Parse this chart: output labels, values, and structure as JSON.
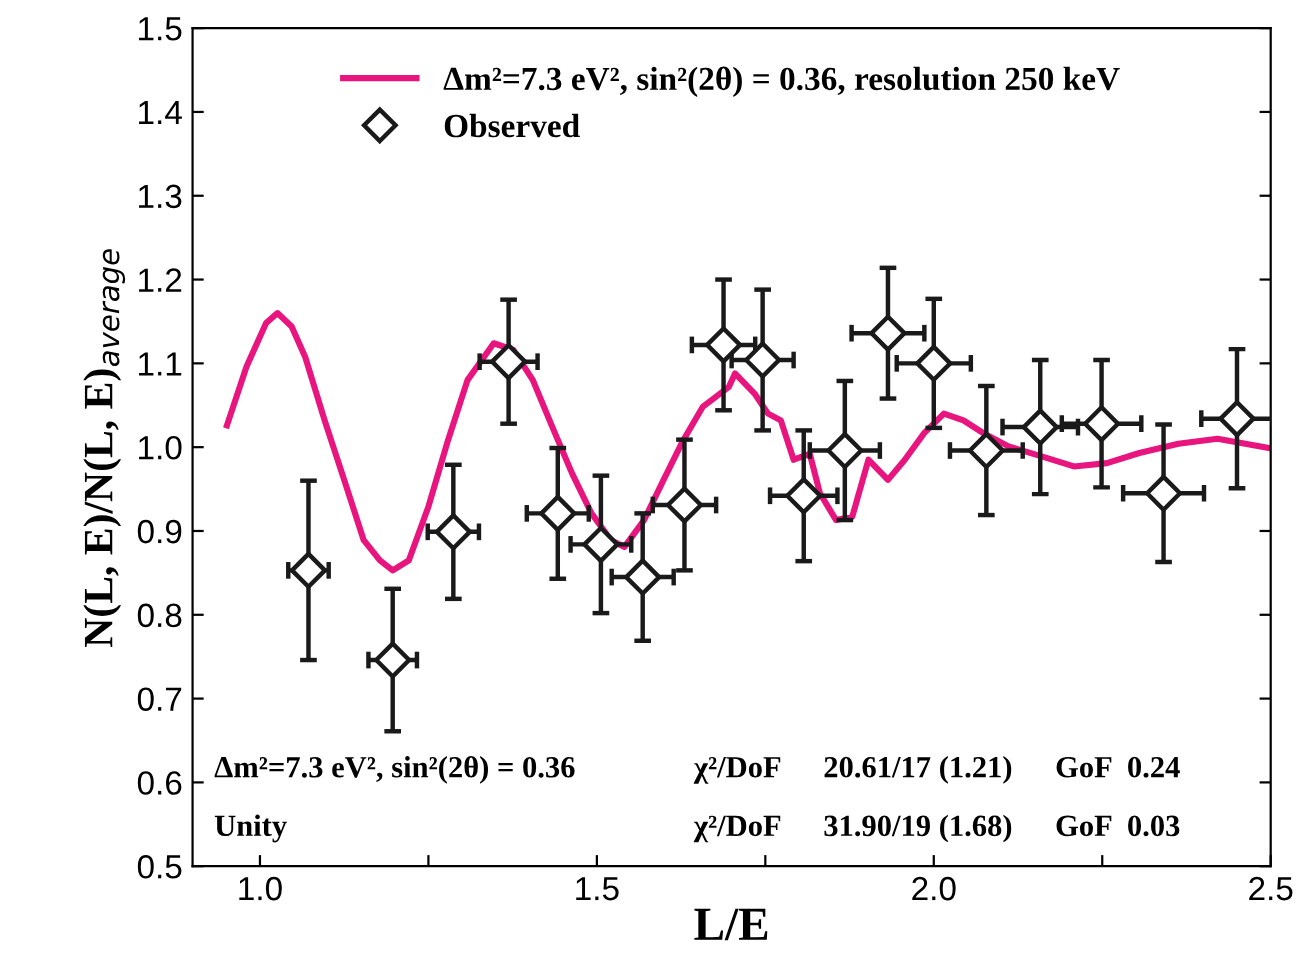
{
  "chart_data": {
    "type": "line",
    "xlabel": "L/E",
    "ylabel": "N(L, E)/N(L, E)$_{average}$",
    "xlim": [
      0.9,
      2.5
    ],
    "xticks": [
      {
        "value": 1.0,
        "label": "1.0"
      },
      {
        "value": 1.25,
        "label": null
      },
      {
        "value": 1.5,
        "label": "1.5"
      },
      {
        "value": 1.75,
        "label": null
      },
      {
        "value": 2.0,
        "label": "2.0"
      },
      {
        "value": 2.25,
        "label": null
      },
      {
        "value": 2.5,
        "label": "2.5"
      }
    ],
    "ylim": [
      0.5,
      1.5
    ],
    "yticks": [
      {
        "value": 0.5,
        "label": "0.5"
      },
      {
        "value": 0.6,
        "label": "0.6"
      },
      {
        "value": 0.7,
        "label": "0.7"
      },
      {
        "value": 0.8,
        "label": "0.8"
      },
      {
        "value": 0.9,
        "label": "0.9"
      },
      {
        "value": 1.0,
        "label": "1.0"
      },
      {
        "value": 1.1,
        "label": "1.1"
      },
      {
        "value": 1.2,
        "label": "1.2"
      },
      {
        "value": 1.3,
        "label": "1.3"
      },
      {
        "value": 1.4,
        "label": "1.4"
      },
      {
        "value": 1.5,
        "label": "1.5"
      }
    ],
    "grid": false,
    "legend": "top",
    "series": [
      {
        "name": "Δm²=7.3 eV², sin²(2θ) = 0.36, resolution 250 keV",
        "color": "#e8157f",
        "line_style": "solid",
        "marker": "none",
        "x": [
          0.951,
          0.98,
          1.009,
          1.026,
          1.047,
          1.067,
          1.096,
          1.125,
          1.154,
          1.178,
          1.197,
          1.221,
          1.25,
          1.279,
          1.308,
          1.347,
          1.376,
          1.405,
          1.434,
          1.463,
          1.492,
          1.521,
          1.541,
          1.57,
          1.599,
          1.628,
          1.657,
          1.696,
          1.705,
          1.734,
          1.754,
          1.773,
          1.792,
          1.816,
          1.831,
          1.855,
          1.879,
          1.903,
          1.932,
          1.957,
          1.986,
          2.015,
          2.044,
          2.073,
          2.111,
          2.16,
          2.208,
          2.257,
          2.305,
          2.363,
          2.421,
          2.498
        ],
        "values": [
          1.026,
          1.096,
          1.148,
          1.16,
          1.144,
          1.108,
          1.032,
          0.961,
          0.889,
          0.865,
          0.853,
          0.865,
          0.929,
          1.008,
          1.08,
          1.124,
          1.116,
          1.08,
          1.024,
          0.969,
          0.921,
          0.889,
          0.881,
          0.913,
          0.961,
          1.008,
          1.048,
          1.072,
          1.088,
          1.064,
          1.04,
          1.032,
          0.985,
          0.992,
          0.945,
          0.913,
          0.917,
          0.985,
          0.961,
          0.985,
          1.017,
          1.04,
          1.032,
          1.017,
          1.001,
          0.989,
          0.977,
          0.981,
          0.993,
          1.004,
          1.01,
          0.999
        ]
      },
      {
        "type": "scatter",
        "name": "Observed",
        "color": "#1a1a1a",
        "marker": "diamond",
        "x": [
          1.072,
          1.197,
          1.287,
          1.369,
          1.442,
          1.506,
          1.568,
          1.63,
          1.688,
          1.746,
          1.807,
          1.868,
          1.932,
          2.0,
          2.078,
          2.158,
          2.249,
          2.341,
          2.45
        ],
        "values": [
          0.853,
          0.746,
          0.899,
          1.102,
          0.921,
          0.884,
          0.845,
          0.931,
          1.122,
          1.104,
          0.942,
          0.996,
          1.136,
          1.1,
          0.996,
          1.024,
          1.028,
          0.945,
          1.034
        ],
        "errors": [
          0.107,
          0.085,
          0.08,
          0.074,
          0.078,
          0.082,
          0.076,
          0.078,
          0.078,
          0.084,
          0.078,
          0.083,
          0.078,
          0.077,
          0.077,
          0.08,
          0.076,
          0.082,
          0.083
        ],
        "xerrors": [
          0.03,
          0.036,
          0.038,
          0.043,
          0.046,
          0.045,
          0.046,
          0.047,
          0.047,
          0.046,
          0.05,
          0.052,
          0.054,
          0.055,
          0.054,
          0.056,
          0.059,
          0.06,
          0.053
        ]
      }
    ],
    "annotations": [
      "Δm²=7.3 eV², sin²(2θ) = 0.36",
      "χ²/DoF",
      "20.61/17 (1.21)",
      "GoF  0.24",
      "Unity",
      "χ²/DoF",
      "31.90/19 (1.68)",
      "GoF  0.03"
    ]
  }
}
